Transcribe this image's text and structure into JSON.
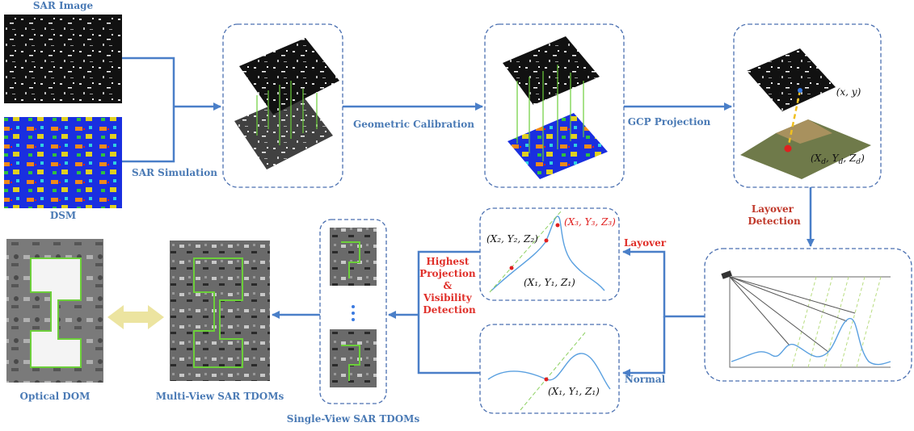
{
  "inputs": {
    "sar_image": "SAR Image",
    "dsm": "DSM"
  },
  "steps": {
    "sar_simulation": "SAR Simulation",
    "geometric_calibration": "Geometric Calibration",
    "gcp_projection": "GCP Projection",
    "layover_detection": [
      "Layover",
      "Detection"
    ]
  },
  "gcp": {
    "image_point": "(x, y)",
    "ground_point": [
      "(X",
      "d",
      ", Y",
      "d",
      ", Z",
      "d",
      ")"
    ]
  },
  "branches": {
    "layover": "Layover",
    "normal": "Normal"
  },
  "visibility": [
    "Highest",
    "Projection",
    "&",
    "Visibility",
    "Detection"
  ],
  "layover_points": {
    "p2": "(X₂, Y₂, Z₂)",
    "p3": "(X₃, Y₃, Z₃)",
    "p1": "(X₁, Y₁, Z₁)"
  },
  "normal_point": "(X₁, Y₁, Z₁)",
  "outputs": {
    "single_view": "Single-View SAR TDOMs",
    "multi_view": "Multi-View SAR TDOMs",
    "optical": "Optical DOM"
  }
}
